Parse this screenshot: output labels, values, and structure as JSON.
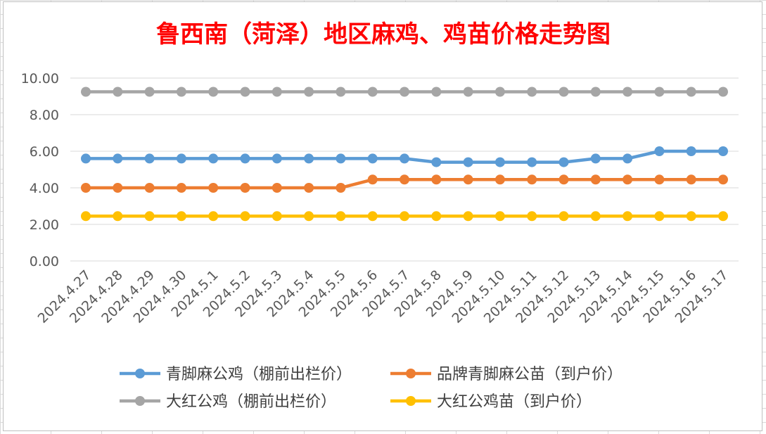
{
  "chart_data": {
    "type": "line",
    "title": "鲁西南（菏泽）地区麻鸡、鸡苗价格走势图",
    "categories": [
      "2024.4.27",
      "2024.4.28",
      "2024.4.29",
      "2024.4.30",
      "2024.5.1",
      "2024.5.2",
      "2024.5.3",
      "2024.5.4",
      "2024.5.5",
      "2024.5.6",
      "2024.5.7",
      "2024.5.8",
      "2024.5.9",
      "2024.5.10",
      "2024.5.11",
      "2024.5.12",
      "2024.5.13",
      "2024.5.14",
      "2024.5.15",
      "2024.5.16",
      "2024.5.17"
    ],
    "ylim": [
      0,
      10
    ],
    "yticks": [
      "0.00",
      "2.00",
      "4.00",
      "6.00",
      "8.00",
      "10.00"
    ],
    "grid": true,
    "legend_position": "bottom",
    "series": [
      {
        "name": "青脚麻公鸡（棚前出栏价）",
        "color": "#5b9bd5",
        "values": [
          5.6,
          5.6,
          5.6,
          5.6,
          5.6,
          5.6,
          5.6,
          5.6,
          5.6,
          5.6,
          5.6,
          5.4,
          5.4,
          5.4,
          5.4,
          5.4,
          5.6,
          5.6,
          6.0,
          6.0,
          6.0
        ]
      },
      {
        "name": "品牌青脚麻公苗（到户价）",
        "color": "#ed7d31",
        "values": [
          4.0,
          4.0,
          4.0,
          4.0,
          4.0,
          4.0,
          4.0,
          4.0,
          4.0,
          4.45,
          4.45,
          4.45,
          4.45,
          4.45,
          4.45,
          4.45,
          4.45,
          4.45,
          4.45,
          4.45,
          4.45
        ]
      },
      {
        "name": "大红公鸡（棚前出栏价）",
        "color": "#a5a5a5",
        "values": [
          9.25,
          9.25,
          9.25,
          9.25,
          9.25,
          9.25,
          9.25,
          9.25,
          9.25,
          9.25,
          9.25,
          9.25,
          9.25,
          9.25,
          9.25,
          9.25,
          9.25,
          9.25,
          9.25,
          9.25,
          9.25
        ]
      },
      {
        "name": "大红公鸡苗（到户价）",
        "color": "#ffc000",
        "values": [
          2.45,
          2.45,
          2.45,
          2.45,
          2.45,
          2.45,
          2.45,
          2.45,
          2.45,
          2.45,
          2.45,
          2.45,
          2.45,
          2.45,
          2.45,
          2.45,
          2.45,
          2.45,
          2.45,
          2.45,
          2.45
        ]
      }
    ]
  }
}
